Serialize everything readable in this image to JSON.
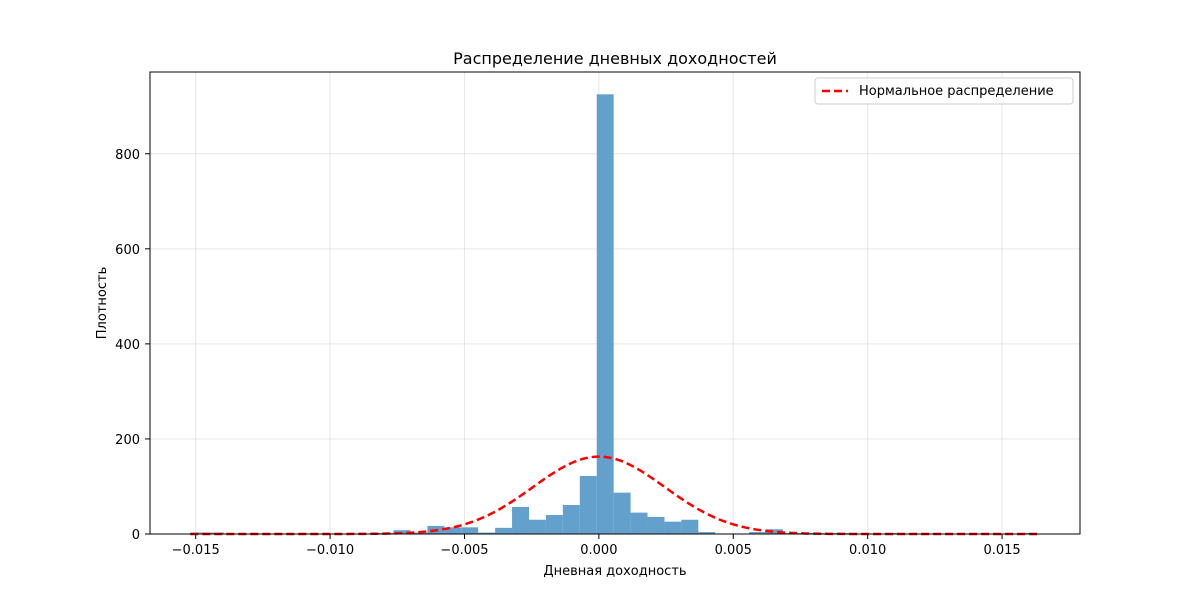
{
  "chart_data": {
    "type": "bar",
    "title": "Распределение дневных доходностей",
    "xlabel": "Дневная доходность",
    "ylabel": "Плотность",
    "xlim": [
      -0.0167,
      0.0179
    ],
    "ylim": [
      0,
      972
    ],
    "grid": true,
    "legend_position": "top-right",
    "x_ticks": [
      -0.015,
      -0.01,
      -0.005,
      0.0,
      0.005,
      0.01,
      0.015
    ],
    "x_tick_labels": [
      "−0.015",
      "−0.010",
      "−0.005",
      "0.000",
      "0.005",
      "0.010",
      "0.015"
    ],
    "y_ticks": [
      0,
      200,
      400,
      600,
      800
    ],
    "y_tick_labels": [
      "0",
      "200",
      "400",
      "600",
      "800"
    ],
    "histogram": {
      "name": "",
      "color": "#5b9bc9",
      "bin_edges": [
        -0.0152,
        -0.01457,
        -0.01394,
        -0.01331,
        -0.01268,
        -0.01205,
        -0.01142,
        -0.01079,
        -0.01016,
        -0.00953,
        -0.0089,
        -0.00827,
        -0.00764,
        -0.00701,
        -0.00638,
        -0.00575,
        -0.00512,
        -0.00449,
        -0.00386,
        -0.00323,
        -0.0026,
        -0.00197,
        -0.00134,
        -0.00071,
        -8e-05,
        0.00055,
        0.00118,
        0.00181,
        0.00244,
        0.00307,
        0.0037,
        0.00433,
        0.00496,
        0.00559,
        0.00622,
        0.00685,
        0.00748,
        0.00811,
        0.00874,
        0.00937,
        0.01,
        0.01063,
        0.01126,
        0.01189,
        0.01252,
        0.01315,
        0.01378,
        0.01441,
        0.01504,
        0.01567,
        0.0163
      ],
      "values": [
        3,
        3,
        0,
        0,
        0,
        0,
        0,
        0,
        0,
        0,
        0,
        2,
        8,
        3,
        17,
        14,
        14,
        3,
        13,
        57,
        30,
        40,
        61,
        122,
        925,
        87,
        45,
        36,
        26,
        30,
        4,
        0,
        0,
        4,
        10,
        2,
        2,
        2,
        2,
        0,
        1,
        2,
        0,
        1,
        0,
        0,
        1,
        1,
        1,
        2
      ]
    },
    "series": [
      {
        "name": "Нормальное распределение",
        "type": "line",
        "style": "dashed",
        "color": "#ff0000",
        "mean": 0.0,
        "std": 0.00245,
        "x_range": [
          -0.0152,
          0.0163
        ]
      }
    ]
  }
}
